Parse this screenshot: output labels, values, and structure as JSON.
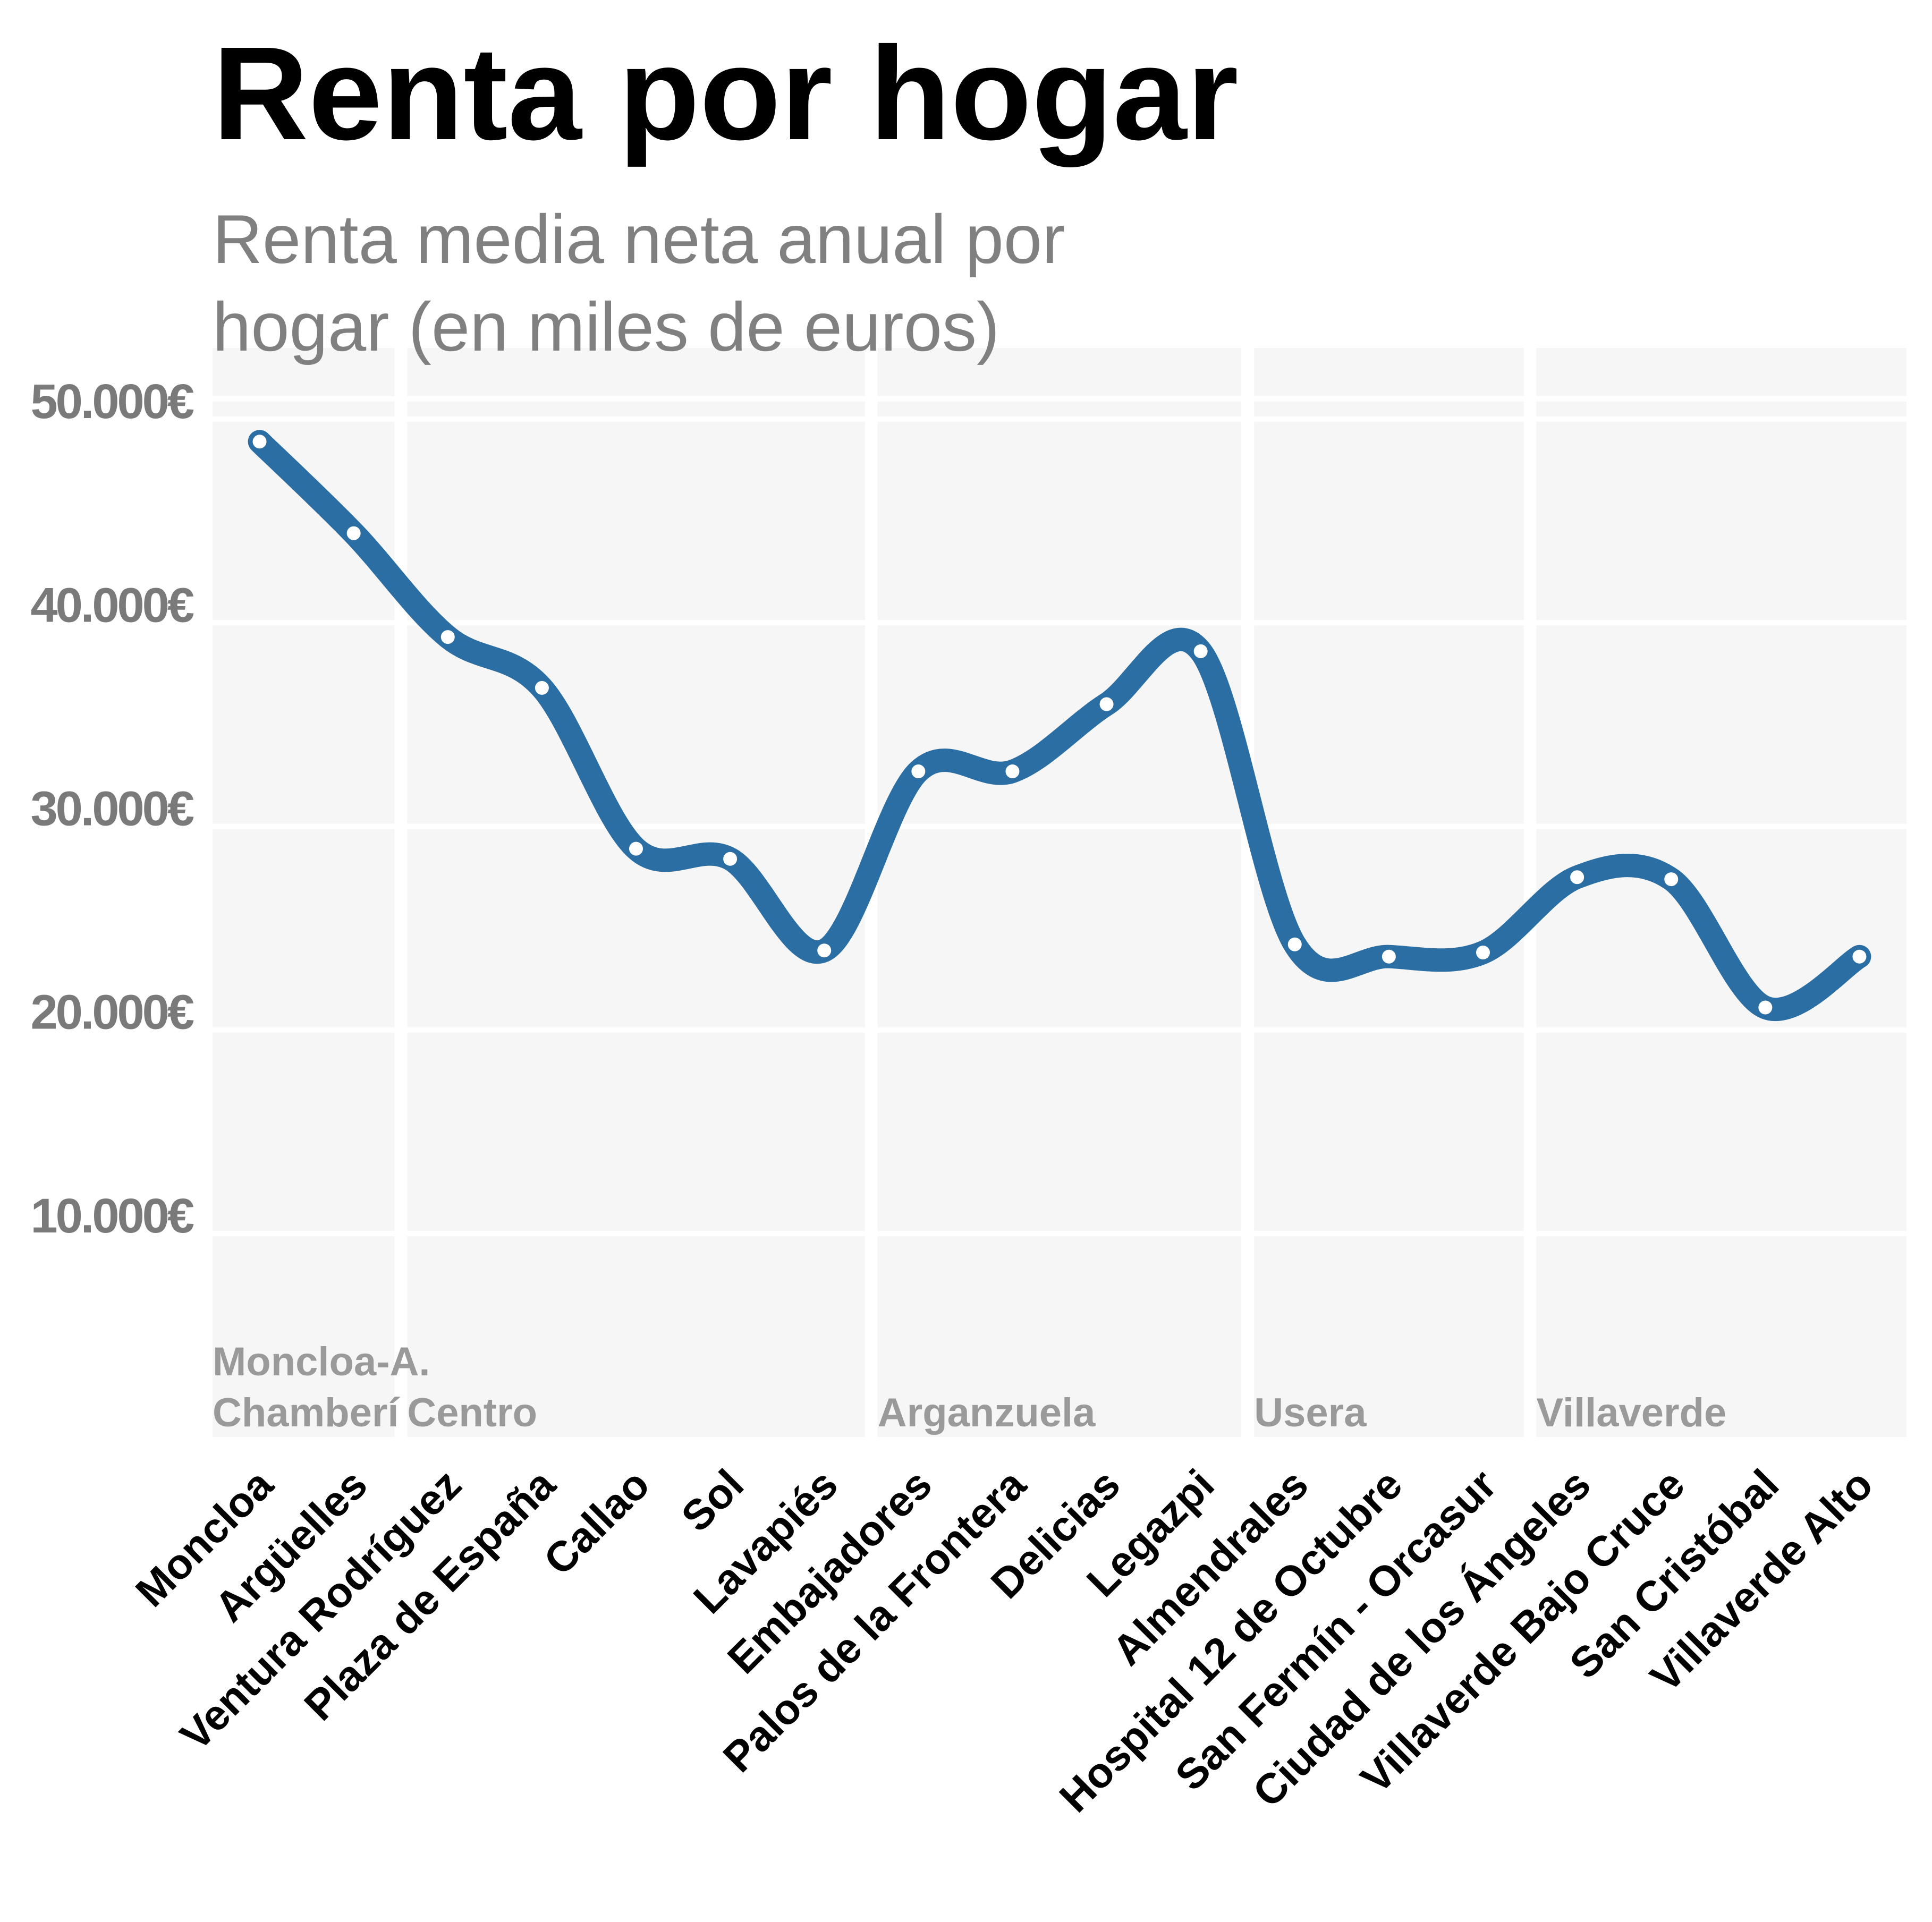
{
  "chart_data": {
    "type": "line",
    "title": "Renta por hogar",
    "subtitle": [
      "Renta media neta anual por",
      "hogar (en miles de euros)"
    ],
    "xlabel": "",
    "ylabel": "",
    "ylim": [
      0,
      53500
    ],
    "yticks": [
      10000,
      20000,
      30000,
      40000,
      50000
    ],
    "ytick_labels": [
      "10.000€",
      "20.000€",
      "30.000€",
      "40.000€",
      "50.000€"
    ],
    "categories": [
      "Moncloa",
      "Argüelles",
      "Ventura Rodríguez",
      "Plaza de España",
      "Callao",
      "Sol",
      "Lavapiés",
      "Embajadores",
      "Palos de la Frontera",
      "Delicias",
      "Legazpi",
      "Almendrales",
      "Hospital 12 de Octubre",
      "San Fermín - Orcasur",
      "Ciudad de los Ángeles",
      "Villaverde Bajo Cruce",
      "San Cristóbal",
      "Villaverde Alto"
    ],
    "series": [
      {
        "values": [
          48900,
          44400,
          39300,
          36800,
          28900,
          28400,
          23900,
          32700,
          32700,
          36000,
          38600,
          24200,
          23600,
          23800,
          27500,
          27400,
          21100,
          23600
        ],
        "color": "#2b6ea3"
      }
    ],
    "districts": [
      {
        "label": [
          "Moncloa-A.",
          "Chamberí"
        ],
        "start": 0,
        "end": 1
      },
      {
        "label": [
          "Centro"
        ],
        "start": 2,
        "end": 6
      },
      {
        "label": [
          "Arganzuela"
        ],
        "start": 7,
        "end": 10
      },
      {
        "label": [
          "Usera"
        ],
        "start": 11,
        "end": 13
      },
      {
        "label": [
          "Villaverde"
        ],
        "start": 14,
        "end": 17
      }
    ],
    "grid": true,
    "legend": "none"
  }
}
